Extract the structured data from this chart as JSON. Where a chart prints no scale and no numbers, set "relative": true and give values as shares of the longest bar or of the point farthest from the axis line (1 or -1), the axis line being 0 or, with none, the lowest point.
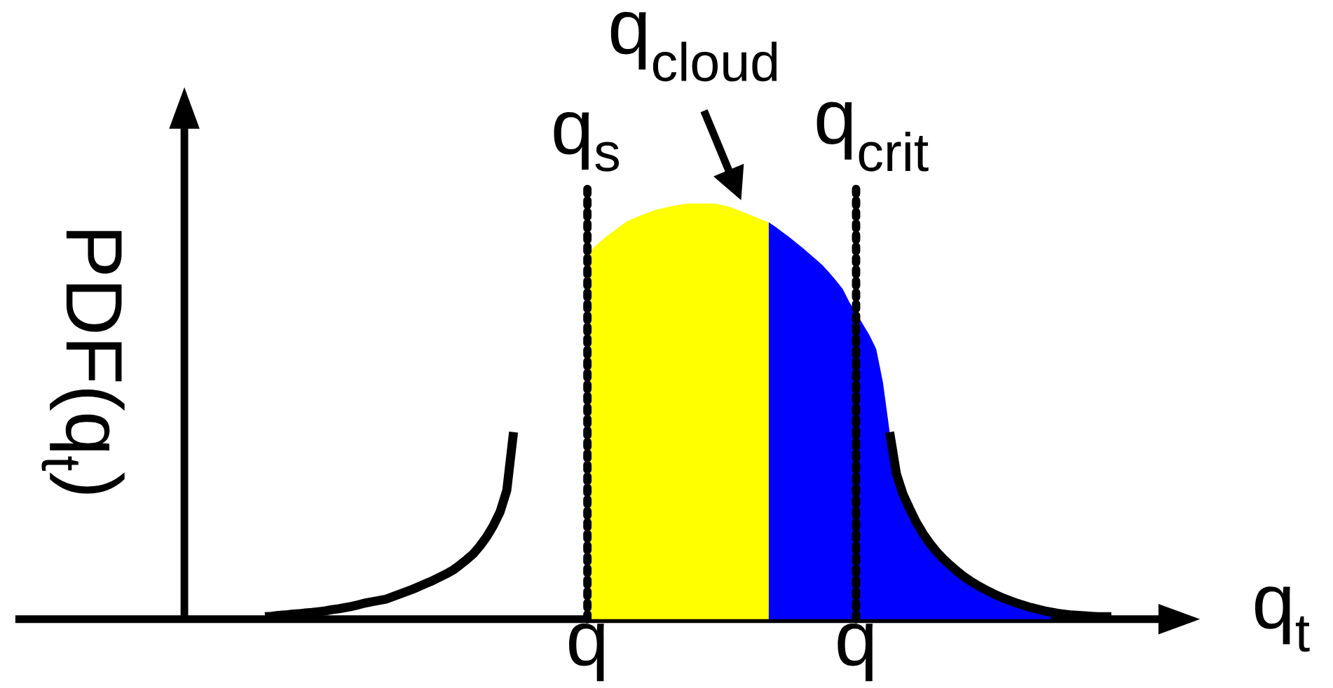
{
  "chart_data": {
    "type": "area",
    "relative": true,
    "grid": "x",
    "xlabel": "q$_{t}$",
    "ylabel": "PDF(q$_{t}$)",
    "categories": [
      null,
      null,
      null,
      null,
      null,
      null,
      null,
      null,
      null,
      null,
      null,
      null,
      null,
      null,
      null,
      null,
      null,
      null,
      null,
      null,
      null,
      null,
      null,
      null,
      null,
      null,
      null,
      null,
      null,
      null,
      null,
      null,
      null,
      null,
      null,
      null,
      null,
      null,
      null,
      null,
      null,
      null,
      null,
      null,
      null,
      null,
      null,
      null,
      null,
      null,
      null,
      null,
      null,
      null,
      null,
      null,
      null,
      null,
      null,
      null,
      "q",
      null,
      null,
      null,
      null,
      null,
      null,
      null,
      null,
      null,
      null,
      null,
      null,
      null,
      null,
      null,
      null,
      null,
      null,
      null,
      null,
      null,
      null,
      null,
      null,
      null,
      null,
      null,
      null,
      null,
      null,
      null,
      null,
      null,
      null,
      null,
      null,
      null,
      null,
      null,
      "q",
      null,
      null,
      null,
      null,
      null,
      null,
      null,
      null,
      null,
      null,
      null,
      null,
      null,
      null,
      null,
      null,
      null,
      null,
      null,
      null,
      null,
      null,
      null,
      null,
      null,
      null,
      null,
      null,
      null,
      null,
      null,
      null,
      null,
      null,
      null,
      null,
      null,
      null
    ],
    "series": [
      {
        "type": "line",
        "color": "#000000",
        "values": [
          null,
          null,
          null,
          null,
          null,
          null,
          null,
          null,
          null,
          null,
          null,
          null,
          0.006,
          0.007,
          0.009,
          0.01,
          0.012,
          0.013,
          0.015,
          0.016,
          0.018,
          0.02,
          0.023,
          0.025,
          0.028,
          0.031,
          0.035,
          0.039,
          0.042,
          0.045,
          0.048,
          0.054,
          0.06,
          0.066,
          0.072,
          0.079,
          0.086,
          0.093,
          0.101,
          0.109,
          0.118,
          0.13,
          0.143,
          0.157,
          0.176,
          0.198,
          0.225,
          0.258,
          0.31,
          0.45,
          null,
          null,
          null,
          null,
          null,
          null,
          null,
          null,
          null,
          null,
          null,
          null,
          null,
          null,
          null,
          null,
          null,
          null,
          null,
          null,
          null,
          null,
          null,
          null,
          null,
          null,
          null,
          null,
          null,
          null,
          null,
          null,
          null,
          null,
          null,
          null,
          null,
          null,
          null,
          null,
          null,
          null,
          null,
          null,
          null,
          null,
          null,
          null,
          null,
          null,
          null,
          null,
          null,
          null,
          null,
          null,
          null,
          null,
          null,
          null,
          null,
          null,
          null,
          null,
          null,
          null,
          null,
          null,
          null,
          null,
          null,
          null,
          null,
          null,
          null,
          null,
          null,
          null,
          null,
          null,
          null,
          null,
          null,
          null,
          null,
          null,
          null,
          null,
          null
        ]
      },
      {
        "color": "#ffff00",
        "values": [
          null,
          null,
          null,
          null,
          null,
          null,
          null,
          null,
          null,
          null,
          null,
          null,
          null,
          null,
          null,
          null,
          null,
          null,
          null,
          null,
          null,
          null,
          null,
          null,
          null,
          null,
          null,
          null,
          null,
          null,
          null,
          null,
          null,
          null,
          null,
          null,
          null,
          null,
          null,
          null,
          null,
          null,
          null,
          null,
          null,
          null,
          null,
          null,
          null,
          null,
          null,
          null,
          null,
          null,
          null,
          null,
          null,
          null,
          null,
          null,
          0.88,
          0.895,
          0.91,
          0.923,
          0.935,
          0.947,
          0.958,
          0.965,
          0.972,
          0.978,
          0.984,
          0.988,
          0.992,
          0.995,
          0.998,
          1.0,
          1.0,
          1.0,
          1.0,
          1.0,
          0.997,
          0.993,
          0.987,
          0.981,
          0.974,
          0.968,
          0.961,
          0.955,
          null,
          null,
          null,
          null,
          null,
          null,
          null,
          null,
          null,
          null,
          null,
          null,
          null,
          null,
          null,
          null,
          null,
          null,
          null,
          null,
          null,
          null,
          null,
          null,
          null,
          null,
          null,
          null,
          null,
          null,
          null,
          null,
          null,
          null,
          null,
          null,
          null,
          null,
          null,
          null,
          null,
          null,
          null,
          null,
          null,
          null,
          null,
          null,
          null,
          null,
          null
        ]
      },
      {
        "color": "#0000ff",
        "values": [
          null,
          null,
          null,
          null,
          null,
          null,
          null,
          null,
          null,
          null,
          null,
          null,
          null,
          null,
          null,
          null,
          null,
          null,
          null,
          null,
          null,
          null,
          null,
          null,
          null,
          null,
          null,
          null,
          null,
          null,
          null,
          null,
          null,
          null,
          null,
          null,
          null,
          null,
          null,
          null,
          null,
          null,
          null,
          null,
          null,
          null,
          null,
          null,
          null,
          null,
          null,
          null,
          null,
          null,
          null,
          null,
          null,
          null,
          null,
          null,
          null,
          null,
          null,
          null,
          null,
          null,
          null,
          null,
          null,
          null,
          null,
          null,
          null,
          null,
          null,
          null,
          null,
          null,
          null,
          null,
          null,
          null,
          null,
          null,
          null,
          null,
          null,
          0.955,
          0.944,
          0.932,
          0.92,
          0.907,
          0.894,
          0.88,
          0.866,
          0.852,
          0.834,
          0.815,
          0.795,
          0.763,
          0.737,
          0.71,
          0.683,
          0.65,
          0.57,
          0.45,
          0.35,
          0.3,
          0.265,
          0.232,
          0.205,
          0.182,
          0.162,
          0.145,
          0.13,
          0.116,
          0.103,
          0.092,
          0.082,
          0.073,
          0.065,
          0.057,
          0.05,
          0.044,
          0.038,
          0.033,
          0.028,
          0.024,
          0.02,
          0.017,
          null,
          null,
          null,
          null,
          null,
          null,
          null,
          null,
          null
        ]
      },
      {
        "type": "line",
        "color": "#000000",
        "values": [
          null,
          null,
          null,
          null,
          null,
          null,
          null,
          null,
          null,
          null,
          null,
          null,
          null,
          null,
          null,
          null,
          null,
          null,
          null,
          null,
          null,
          null,
          null,
          null,
          null,
          null,
          null,
          null,
          null,
          null,
          null,
          null,
          null,
          null,
          null,
          null,
          null,
          null,
          null,
          null,
          null,
          null,
          null,
          null,
          null,
          null,
          null,
          null,
          null,
          null,
          null,
          null,
          null,
          null,
          null,
          null,
          null,
          null,
          null,
          null,
          null,
          null,
          null,
          null,
          null,
          null,
          null,
          null,
          null,
          null,
          null,
          null,
          null,
          null,
          null,
          null,
          null,
          null,
          null,
          null,
          null,
          null,
          null,
          null,
          null,
          null,
          null,
          null,
          null,
          null,
          null,
          null,
          null,
          null,
          null,
          null,
          null,
          null,
          null,
          null,
          null,
          null,
          null,
          null,
          null,
          0.45,
          0.35,
          0.3,
          0.265,
          0.232,
          0.205,
          0.182,
          0.162,
          0.145,
          0.13,
          0.116,
          0.103,
          0.092,
          0.082,
          0.073,
          0.065,
          0.057,
          0.05,
          0.044,
          0.038,
          0.033,
          0.028,
          0.024,
          0.02,
          0.017,
          0.014,
          0.012,
          0.01,
          0.009,
          0.008,
          0.007,
          0.006,
          0.006,
          0.006
        ]
      }
    ],
    "annotations": [
      "q$_{cloud}$",
      "q$_{s}$",
      "q$_{crit}$"
    ]
  }
}
